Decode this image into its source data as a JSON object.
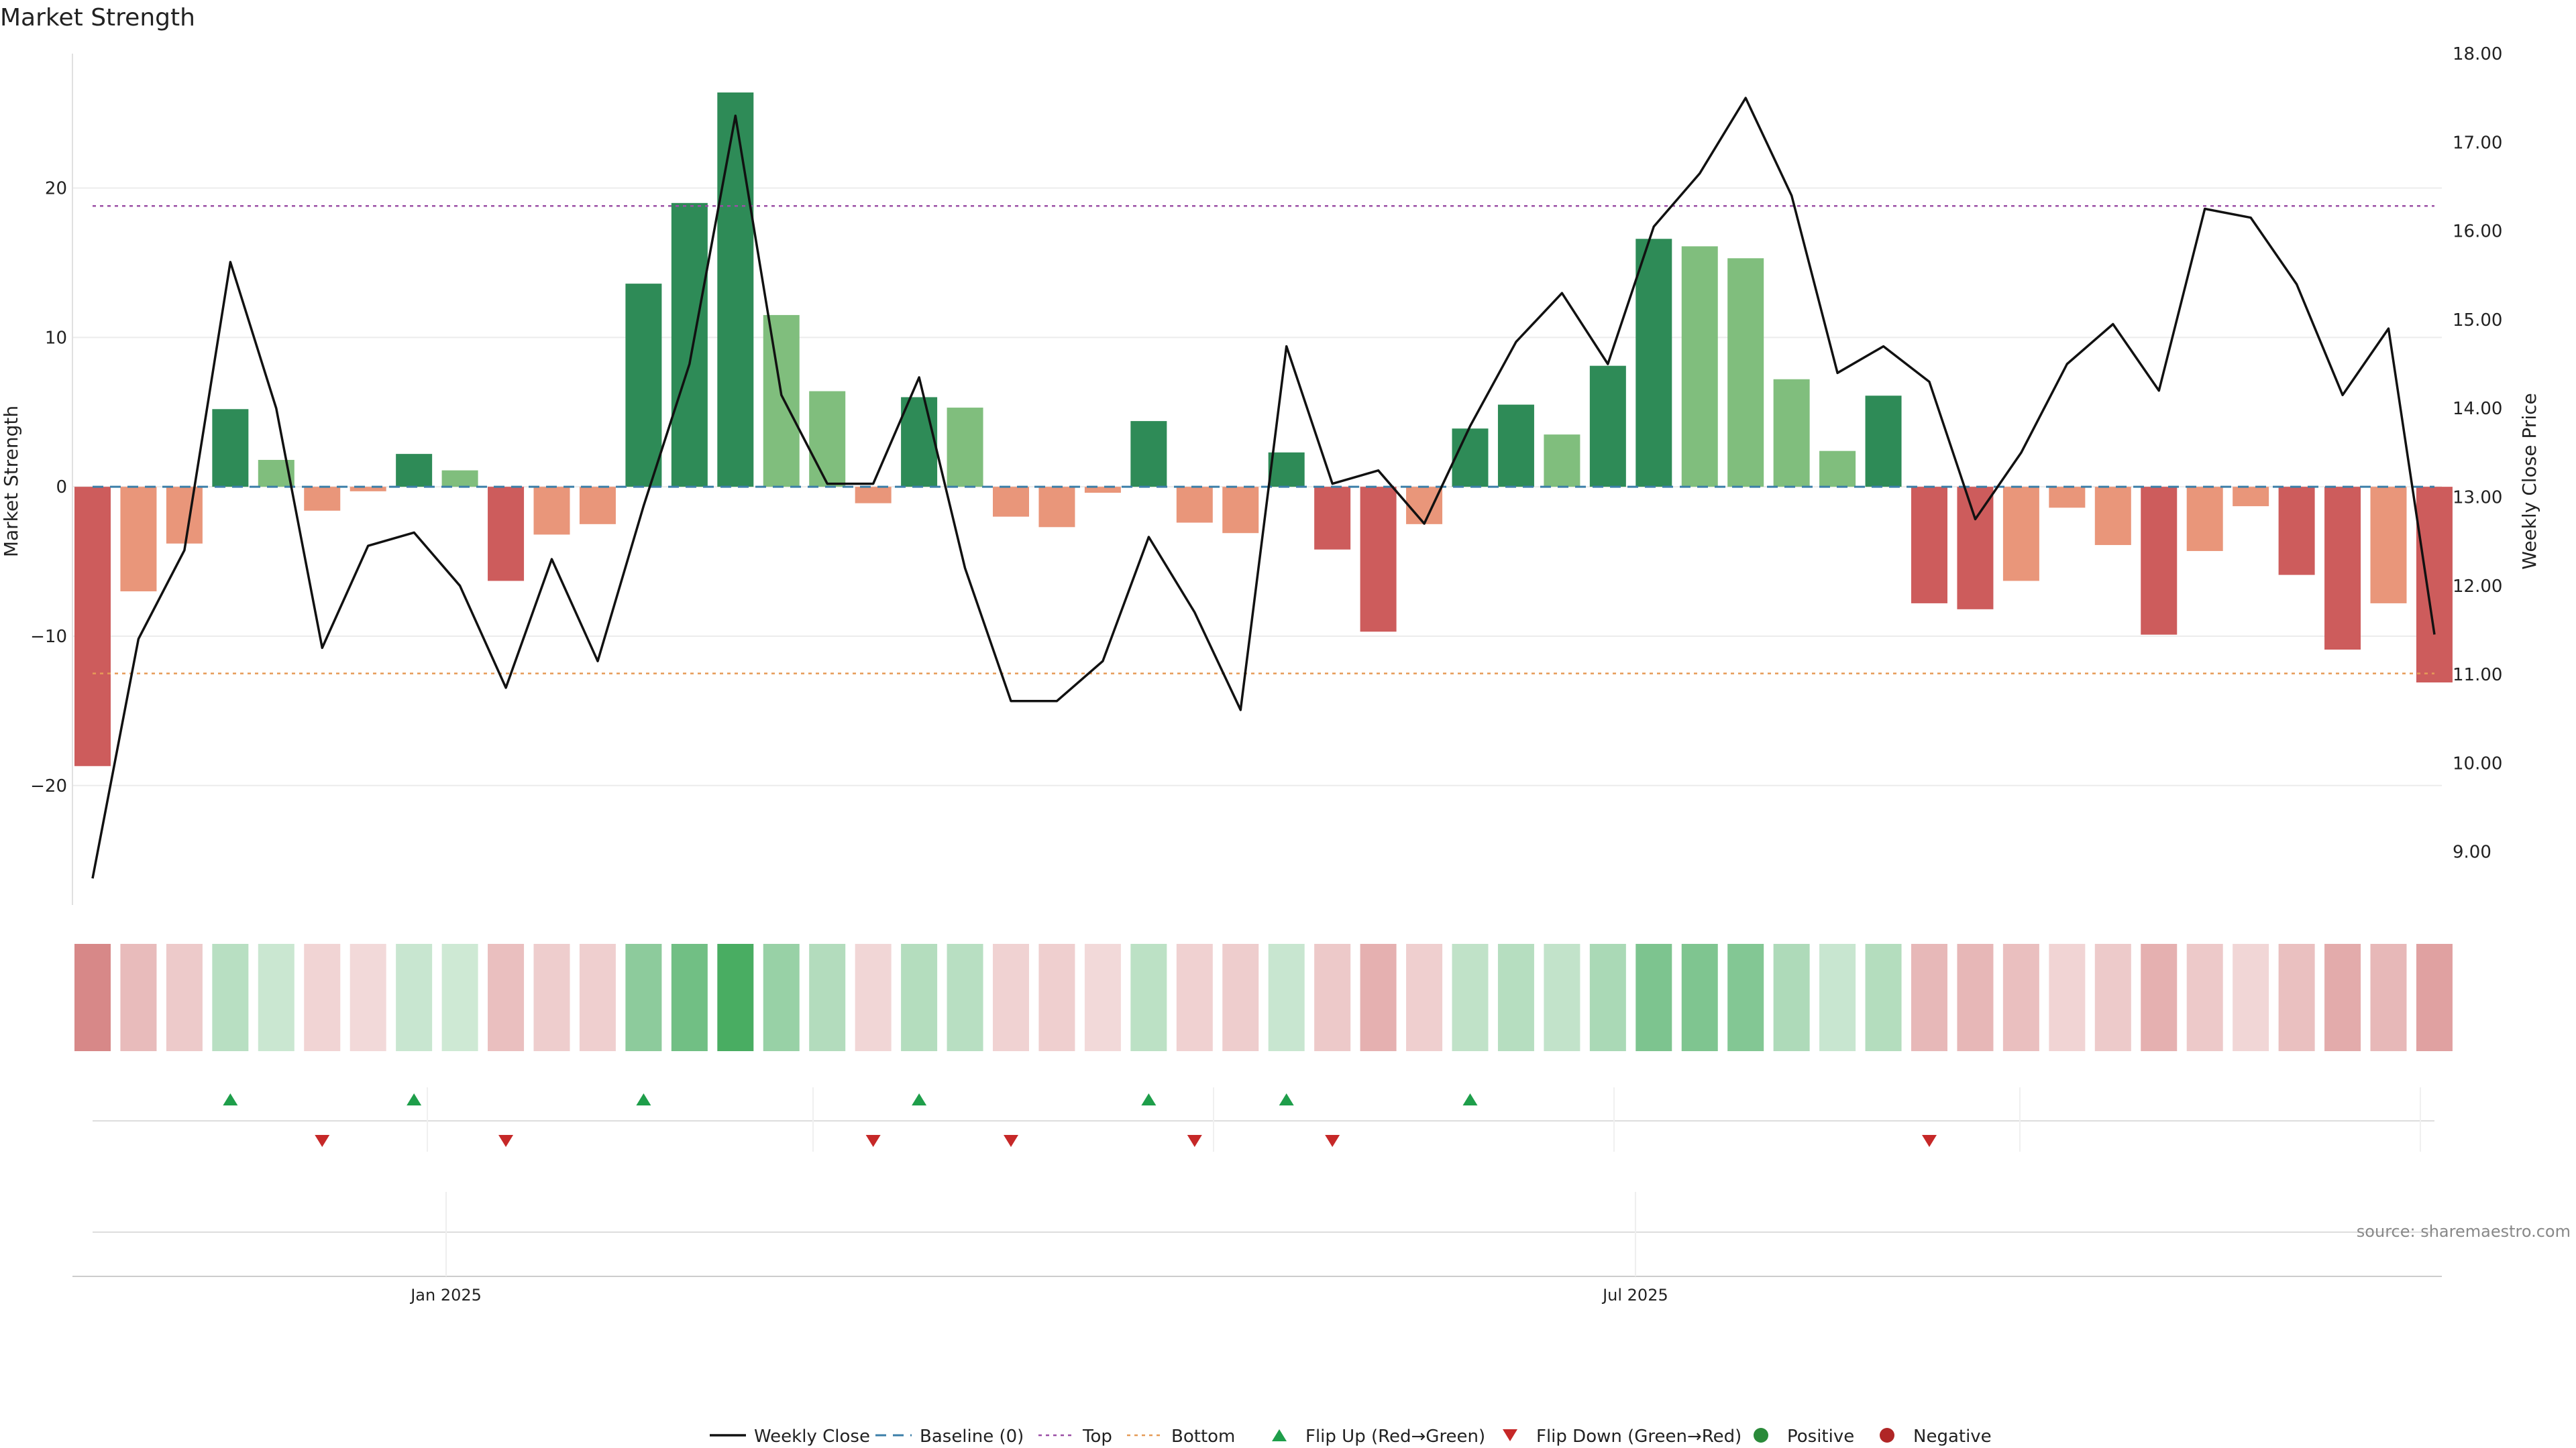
{
  "chart_data": {
    "type": "bar",
    "title": "Market Strength",
    "ylabel_left": "Market Strength",
    "ylabel_right": "Weekly Close Price",
    "left_ylim": [
      -28,
      29
    ],
    "right_ylim": [
      8.4,
      18.0
    ],
    "left_ticks": [
      -20,
      -10,
      0,
      10,
      20
    ],
    "right_ticks": [
      "9.00",
      "10.00",
      "11.00",
      "12.00",
      "13.00",
      "14.00",
      "15.00",
      "16.00",
      "17.00",
      "18.00"
    ],
    "x_tick_labels": [
      {
        "label": "Jan 2025",
        "week": 7.7
      },
      {
        "label": "Jul 2025",
        "week": 33.6
      }
    ],
    "top_level": 18.8,
    "bottom_level": -12.5,
    "baseline": 0,
    "strength": [
      -18.7,
      -7.0,
      -3.8,
      5.2,
      1.8,
      -1.6,
      -0.3,
      2.2,
      1.1,
      -6.3,
      -3.2,
      -2.5,
      13.6,
      19.0,
      26.4,
      11.5,
      6.4,
      -1.1,
      6.0,
      5.3,
      -2.0,
      -2.7,
      -0.4,
      4.4,
      -2.4,
      -3.1,
      2.3,
      -4.2,
      -9.7,
      -2.5,
      3.9,
      5.5,
      3.5,
      8.1,
      16.6,
      16.1,
      15.3,
      7.2,
      2.4,
      6.1,
      -7.8,
      -8.2,
      -6.3,
      -1.4,
      -3.9,
      -9.9,
      -4.3,
      -1.3,
      -5.9,
      -10.9,
      -7.8,
      -13.1
    ],
    "close": [
      8.7,
      11.4,
      12.4,
      15.65,
      14.0,
      11.3,
      12.45,
      12.6,
      12.0,
      10.85,
      12.3,
      11.15,
      12.9,
      14.5,
      17.3,
      14.15,
      13.15,
      13.15,
      14.35,
      12.2,
      10.7,
      10.7,
      11.15,
      12.55,
      11.7,
      10.6,
      14.7,
      13.15,
      13.3,
      12.7,
      13.8,
      14.75,
      15.3,
      14.5,
      16.05,
      16.65,
      17.5,
      16.4,
      14.4,
      14.7,
      14.3,
      12.75,
      13.5,
      14.5,
      14.95,
      14.2,
      16.25,
      16.15,
      15.4,
      14.15,
      14.9,
      11.45
    ],
    "heat_strip_note": "intensity row mirrors strength sign and magnitude",
    "flip_up_weeks": [
      3,
      7,
      12,
      18,
      23,
      26,
      30
    ],
    "flip_down_weeks": [
      5,
      9,
      17,
      20,
      24,
      27,
      40
    ],
    "legend": [
      {
        "label": "Weekly Close",
        "kind": "solid-line",
        "color": "#111111"
      },
      {
        "label": "Baseline (0)",
        "kind": "dashed-line",
        "color": "#3b7ea8"
      },
      {
        "label": "Top",
        "kind": "dotted-line",
        "color": "#9b4fa6"
      },
      {
        "label": "Bottom",
        "kind": "dotted-line",
        "color": "#e69b57"
      },
      {
        "label": "Flip Up (Red→Green)",
        "kind": "triangle-up",
        "color": "#1e9e4a"
      },
      {
        "label": "Flip Down (Green→Red)",
        "kind": "triangle-down",
        "color": "#c62828"
      },
      {
        "label": "Positive",
        "kind": "dot",
        "color": "#2a8a3a"
      },
      {
        "label": "Negative",
        "kind": "dot",
        "color": "#b02626"
      }
    ],
    "source": "source: sharemaestro.com"
  },
  "colors": {
    "pos_strong": "#2e8b57",
    "pos_light": "#80be7d",
    "neg_strong": "#cd5c5c",
    "neg_light": "#e9967a",
    "heat_pos": "#3aa655",
    "heat_neg": "#c85a5a"
  }
}
